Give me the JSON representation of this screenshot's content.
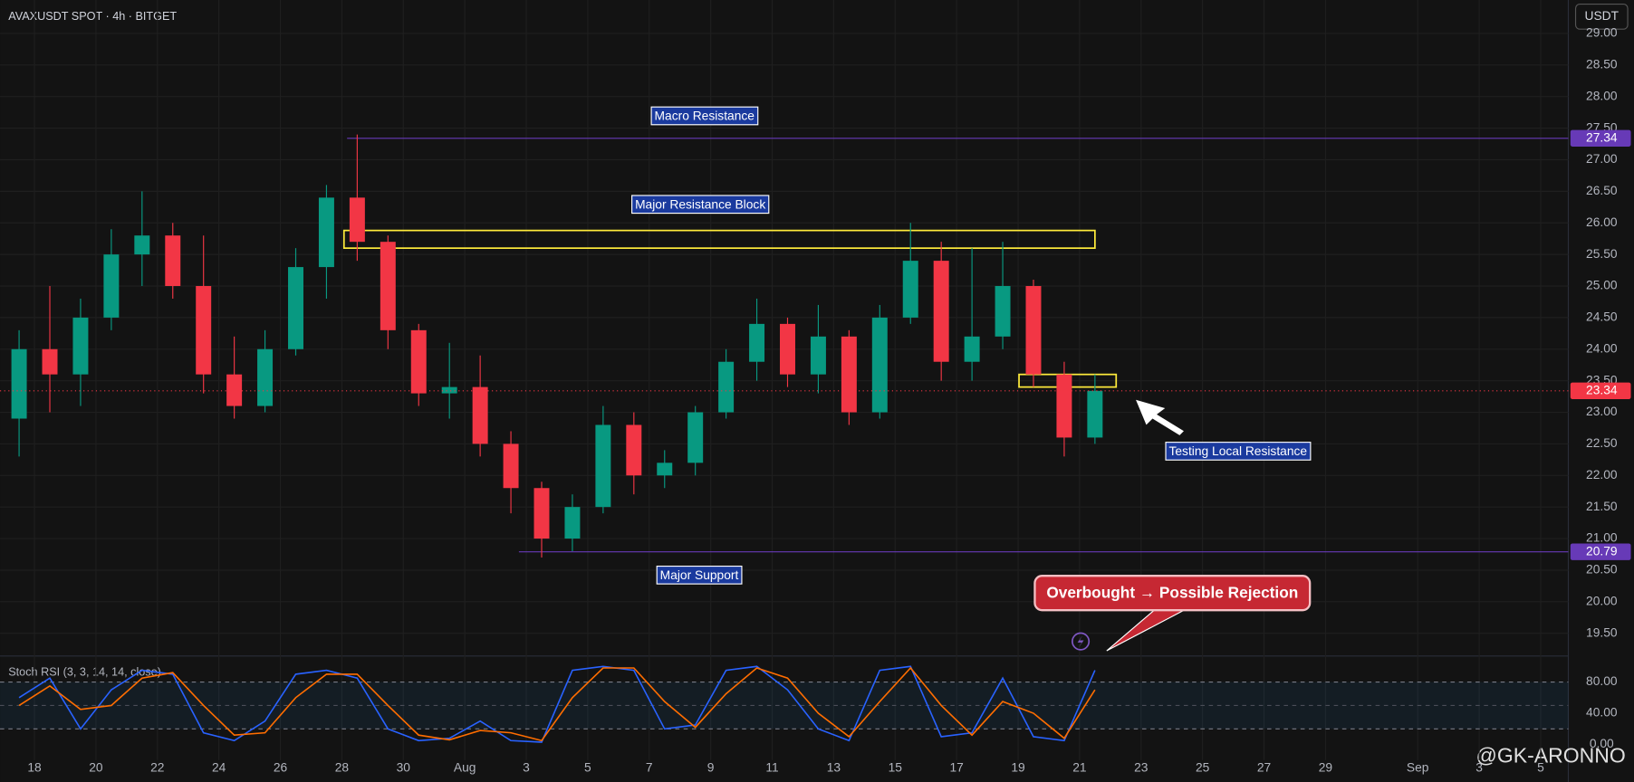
{
  "header": {
    "symbol": "AVAXUSDT SPOT · 4h · BITGET",
    "currency_button": "USDT"
  },
  "watermark": "@GK-ARONNO",
  "chart_data": [
    {
      "type": "candlestick",
      "x": [
        17.5,
        18.5,
        19.5,
        20.5,
        21.5,
        22.5,
        23.5,
        24.5,
        25.5,
        26.5,
        27.5,
        28.5,
        29.5,
        30.5,
        31.5,
        32.5,
        33.5,
        34.5,
        35.5,
        36.5,
        37.5,
        38.5,
        39.5,
        40.5,
        41.5,
        42.5,
        43.5,
        44.5,
        45.5,
        46.5,
        47.5,
        48.5,
        49.5,
        50.5,
        51.5,
        52.5
      ],
      "open": [
        22.9,
        24.0,
        23.6,
        24.5,
        25.5,
        25.8,
        25.0,
        23.6,
        23.1,
        24.0,
        25.3,
        26.4,
        25.7,
        24.3,
        23.3,
        23.4,
        22.5,
        21.8,
        21.0,
        21.5,
        22.8,
        22.0,
        22.2,
        23.0,
        23.8,
        24.4,
        23.6,
        24.2,
        23.0,
        24.5,
        25.4,
        23.8,
        24.2,
        25.0,
        23.6,
        22.6
      ],
      "high": [
        24.3,
        25.0,
        24.8,
        25.9,
        26.5,
        26.0,
        25.8,
        24.2,
        24.3,
        25.6,
        26.6,
        27.4,
        25.8,
        24.4,
        24.1,
        23.9,
        22.7,
        21.9,
        21.7,
        23.1,
        23.0,
        22.4,
        23.1,
        24.0,
        24.8,
        24.5,
        24.7,
        24.3,
        24.7,
        26.0,
        25.7,
        25.6,
        25.7,
        25.1,
        23.8,
        23.6
      ],
      "low": [
        22.3,
        23.0,
        23.1,
        24.3,
        25.0,
        24.8,
        23.3,
        22.9,
        23.0,
        23.9,
        24.8,
        25.4,
        24.0,
        23.1,
        22.9,
        22.3,
        21.4,
        20.7,
        20.8,
        21.4,
        21.7,
        21.8,
        22.0,
        22.9,
        23.5,
        23.4,
        23.3,
        22.8,
        22.9,
        24.4,
        23.5,
        23.5,
        24.0,
        23.4,
        22.3,
        22.5
      ],
      "close": [
        24.0,
        23.6,
        24.5,
        25.5,
        25.8,
        25.0,
        23.6,
        23.1,
        24.0,
        25.3,
        26.4,
        25.7,
        24.3,
        23.3,
        23.4,
        22.5,
        21.8,
        21.0,
        21.5,
        22.8,
        22.0,
        22.2,
        23.0,
        23.8,
        24.4,
        23.6,
        24.2,
        23.0,
        24.5,
        25.4,
        23.8,
        24.2,
        25.0,
        23.6,
        22.6,
        23.34
      ],
      "up_color": "#089981",
      "down_color": "#f23645",
      "xlim": [
        16.88,
        67.9
      ],
      "ylim": [
        19.14,
        29.53
      ],
      "grid": true,
      "xticks": [
        18,
        20,
        22,
        24,
        26,
        28,
        30,
        {
          "value": 32,
          "label": "Aug"
        },
        {
          "value": 34,
          "label": "3"
        },
        {
          "value": 36,
          "label": "5"
        },
        {
          "value": 38,
          "label": "7"
        },
        {
          "value": 40,
          "label": "9"
        },
        {
          "value": 42,
          "label": "11"
        },
        {
          "value": 44,
          "label": "13"
        },
        {
          "value": 46,
          "label": "15"
        },
        {
          "value": 48,
          "label": "17"
        },
        {
          "value": 50,
          "label": "19"
        },
        {
          "value": 52,
          "label": "21"
        },
        {
          "value": 54,
          "label": "23"
        },
        {
          "value": 56,
          "label": "25"
        },
        {
          "value": 58,
          "label": "27"
        },
        {
          "value": 60,
          "label": "29"
        },
        {
          "value": 63,
          "label": "Sep"
        },
        {
          "value": 65,
          "label": "3"
        },
        {
          "value": 67,
          "label": "5"
        }
      ],
      "yticks": [
        {
          "value": 19.5,
          "label": "19.50"
        },
        {
          "value": 20,
          "label": "20.00"
        },
        {
          "value": 20.5,
          "label": "20.50"
        },
        {
          "value": 21,
          "label": "21.00"
        },
        {
          "value": 21.5,
          "label": "21.50"
        },
        {
          "value": 22,
          "label": "22.00"
        },
        {
          "value": 22.5,
          "label": "22.50"
        },
        {
          "value": 23,
          "label": "23.00"
        },
        {
          "value": 23.5,
          "label": "23.50"
        },
        {
          "value": 24,
          "label": "24.00"
        },
        {
          "value": 24.5,
          "label": "24.50"
        },
        {
          "value": 25,
          "label": "25.00"
        },
        {
          "value": 25.5,
          "label": "25.50"
        },
        {
          "value": 26,
          "label": "26.00"
        },
        {
          "value": 26.5,
          "label": "26.50"
        },
        {
          "value": 27,
          "label": "27.00"
        },
        {
          "value": 27.5,
          "label": "27.50"
        },
        {
          "value": 28,
          "label": "28.00"
        },
        {
          "value": 28.5,
          "label": "28.50"
        },
        {
          "value": 29,
          "label": "29.00"
        }
      ],
      "levels": [
        {
          "value": 27.34,
          "from": 28.17,
          "color": "#673ab7"
        },
        {
          "value": 20.79,
          "from": 33.76,
          "color": "#673ab7"
        }
      ],
      "last_price_color": "#f23645",
      "zones": [
        {
          "low": 25.6,
          "high": 25.88,
          "from": 28.07,
          "to": 52.5,
          "color": "#ffeb3b"
        },
        {
          "low": 23.4,
          "high": 23.6,
          "from": 50.03,
          "to": 53.19,
          "color": "#ffeb3b"
        }
      ],
      "annotations": [
        "Macro Resistance",
        "Major Resistance Block",
        "Major Support",
        "Testing Local Resistance"
      ],
      "callout": "Overbought → Possible Rejection"
    },
    {
      "type": "line",
      "title": "Stoch RSI (3, 3, 14, 14, close)",
      "x": [
        17.5,
        18.5,
        19.5,
        20.5,
        21.5,
        22.5,
        23.5,
        24.5,
        25.5,
        26.5,
        27.5,
        28.5,
        29.5,
        30.5,
        31.5,
        32.5,
        33.5,
        34.5,
        35.5,
        36.5,
        37.5,
        38.5,
        39.5,
        40.5,
        41.5,
        42.5,
        43.5,
        44.5,
        45.5,
        46.5,
        47.5,
        48.5,
        49.5,
        50.5,
        51.5,
        52.5
      ],
      "series": [
        {
          "color": "#2962ff",
          "values": [
            60,
            85,
            20,
            70,
            95,
            90,
            15,
            5,
            30,
            90,
            95,
            85,
            20,
            5,
            8,
            30,
            5,
            3,
            95,
            100,
            95,
            20,
            25,
            95,
            100,
            70,
            20,
            5,
            95,
            100,
            10,
            15,
            85,
            10,
            5,
            95
          ]
        },
        {
          "color": "#ff6d00",
          "values": [
            50,
            75,
            45,
            50,
            85,
            92,
            50,
            12,
            15,
            60,
            90,
            90,
            50,
            12,
            6,
            18,
            15,
            5,
            60,
            98,
            98,
            55,
            22,
            65,
            98,
            85,
            40,
            10,
            55,
            98,
            50,
            12,
            55,
            40,
            8,
            70
          ]
        }
      ],
      "ylim": [
        -20,
        113.3
      ],
      "yticks": [
        {
          "value": 0,
          "label": "0.00"
        },
        {
          "value": 40,
          "label": "40.00"
        },
        {
          "value": 80,
          "label": "80.00"
        }
      ],
      "bands": [
        20,
        80
      ],
      "midline": 50
    }
  ]
}
